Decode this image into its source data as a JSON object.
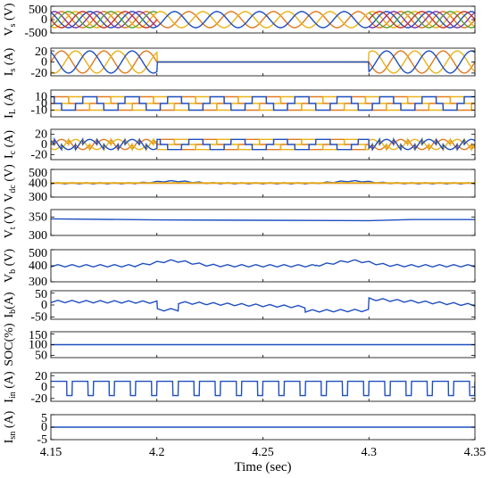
{
  "chart_data": {
    "type": "line",
    "x_range": [
      4.15,
      4.35
    ],
    "x_ticks": [
      "4.15",
      "4.2",
      "4.25",
      "4.3",
      "4.35"
    ],
    "xlabel": "Time (sec)",
    "colors": {
      "blue": "#1f4fbf",
      "orange": "#e07a1f",
      "yellow": "#e8b31a",
      "purple": "#7a3aa8",
      "green": "#5f9f2f",
      "red": "#c8352a"
    },
    "panels": [
      {
        "key": "Vs",
        "ylabel": "V",
        "ylabel_sub": "s",
        "ylabel_unit": " (V)",
        "ylim": [
          -500,
          500
        ],
        "yticks": [
          "500",
          "0",
          "-500"
        ],
        "ytick_values": [
          500,
          0,
          -500
        ],
        "series": [
          {
            "kind": "sine3",
            "amplitude": 300,
            "cycles": 10,
            "segments": [
              [
                4.15,
                4.2,
                3
              ],
              [
                4.2,
                4.3,
                1
              ],
              [
                4.3,
                4.35,
                3
              ]
            ]
          }
        ]
      },
      {
        "key": "Is",
        "ylabel": "I",
        "ylabel_sub": "s",
        "ylabel_unit": " (A)",
        "ylim": [
          -25,
          25
        ],
        "yticks": [
          "20",
          "0",
          "-20"
        ],
        "ytick_values": [
          20,
          0,
          -20
        ],
        "series": [
          {
            "kind": "sine3",
            "amplitude": 20,
            "cycles": 10,
            "segments": [
              [
                4.15,
                4.2,
                3
              ],
              [
                4.3,
                4.35,
                3
              ]
            ],
            "off_value": 0
          }
        ]
      },
      {
        "key": "IL",
        "ylabel": "I",
        "ylabel_sub": "L",
        "ylabel_unit": " (A)",
        "ylim": [
          -20,
          20
        ],
        "yticks": [
          "10",
          "0",
          "-10"
        ],
        "ytick_values": [
          10,
          0,
          -10
        ],
        "series": [
          {
            "kind": "square3",
            "amplitude": 10,
            "cycles": 10
          }
        ]
      },
      {
        "key": "Ic",
        "ylabel": "I",
        "ylabel_sub": "c",
        "ylabel_unit": " (A)",
        "ylim": [
          -30,
          30
        ],
        "yticks": [
          "20",
          "0",
          "-20"
        ],
        "ytick_values": [
          20,
          0,
          -20
        ],
        "series": [
          {
            "kind": "comp3",
            "amplitude": 20,
            "cycles": 10
          }
        ]
      },
      {
        "key": "Vdc",
        "ylabel": "V",
        "ylabel_sub": "dc",
        "ylabel_unit": " (V)",
        "ylim": [
          300,
          500
        ],
        "yticks": [
          "500",
          "400",
          "300"
        ],
        "ytick_values": [
          500,
          400,
          300
        ],
        "series": [
          {
            "kind": "ripple",
            "base": 400,
            "ripple": 8,
            "cycles": 30,
            "bumps": [
              [
                4.2,
                4.215,
                15
              ],
              [
                4.285,
                4.3,
                15
              ]
            ],
            "color": "blue"
          },
          {
            "kind": "flat",
            "value": 400,
            "color": "orange"
          },
          {
            "kind": "flat",
            "value": 403,
            "color": "yellow"
          }
        ]
      },
      {
        "key": "Vt",
        "ylabel": "V",
        "ylabel_sub": "t",
        "ylabel_unit": " (V)",
        "ylim": [
          300,
          370
        ],
        "yticks": [
          "350",
          "300"
        ],
        "ytick_values": [
          350,
          300
        ],
        "series": [
          {
            "kind": "points",
            "x": [
              4.15,
              4.2,
              4.25,
              4.3,
              4.32,
              4.35
            ],
            "y": [
              345,
              342,
              341,
              340,
              343,
              343
            ],
            "color": "blue"
          }
        ]
      },
      {
        "key": "Vb",
        "ylabel": "V",
        "ylabel_sub": "b",
        "ylabel_unit": " (V)",
        "ylim": [
          300,
          500
        ],
        "yticks": [
          "500",
          "400",
          "300"
        ],
        "ytick_values": [
          500,
          400,
          300
        ],
        "series": [
          {
            "kind": "ripple",
            "base": 400,
            "ripple": 14,
            "cycles": 30,
            "bumps": [
              [
                4.2,
                4.215,
                30
              ],
              [
                4.285,
                4.3,
                30
              ]
            ],
            "color": "blue"
          }
        ]
      },
      {
        "key": "Ib",
        "ylabel": "I",
        "ylabel_sub": "b",
        "ylabel_unit": "(A)",
        "ylim": [
          -60,
          60
        ],
        "yticks": [
          "50",
          "0",
          "-50"
        ],
        "ytick_values": [
          50,
          0,
          -50
        ],
        "series": [
          {
            "kind": "ibat",
            "color": "blue"
          }
        ]
      },
      {
        "key": "SOC",
        "ylabel": "SOC(%)",
        "ylabel_sub": "",
        "ylabel_unit": "",
        "ylim": [
          50,
          100
        ],
        "yticks": [
          "150",
          "100",
          "50"
        ],
        "ytick_values": [
          150,
          100,
          50
        ],
        "ylim_display": [
          40,
          160
        ],
        "series": [
          {
            "kind": "flat",
            "value": 100,
            "color": "blue"
          }
        ]
      },
      {
        "key": "Iin",
        "ylabel": "I",
        "ylabel_sub": "in",
        "ylabel_unit": " (A)",
        "ylim": [
          -25,
          25
        ],
        "yticks": [
          "20",
          "0",
          "-20"
        ],
        "ytick_values": [
          20,
          0,
          -20
        ],
        "series": [
          {
            "kind": "square1",
            "high": 10,
            "low": -15,
            "cycles": 20,
            "color": "blue"
          }
        ]
      },
      {
        "key": "Isn",
        "ylabel": "I",
        "ylabel_sub": "sn",
        "ylabel_unit": " (A)",
        "ylim": [
          -5,
          5
        ],
        "yticks": [
          "5",
          "0",
          "-5"
        ],
        "ytick_values": [
          5,
          0,
          -5
        ],
        "series": [
          {
            "kind": "flat",
            "value": 0,
            "color": "blue"
          }
        ]
      }
    ]
  }
}
